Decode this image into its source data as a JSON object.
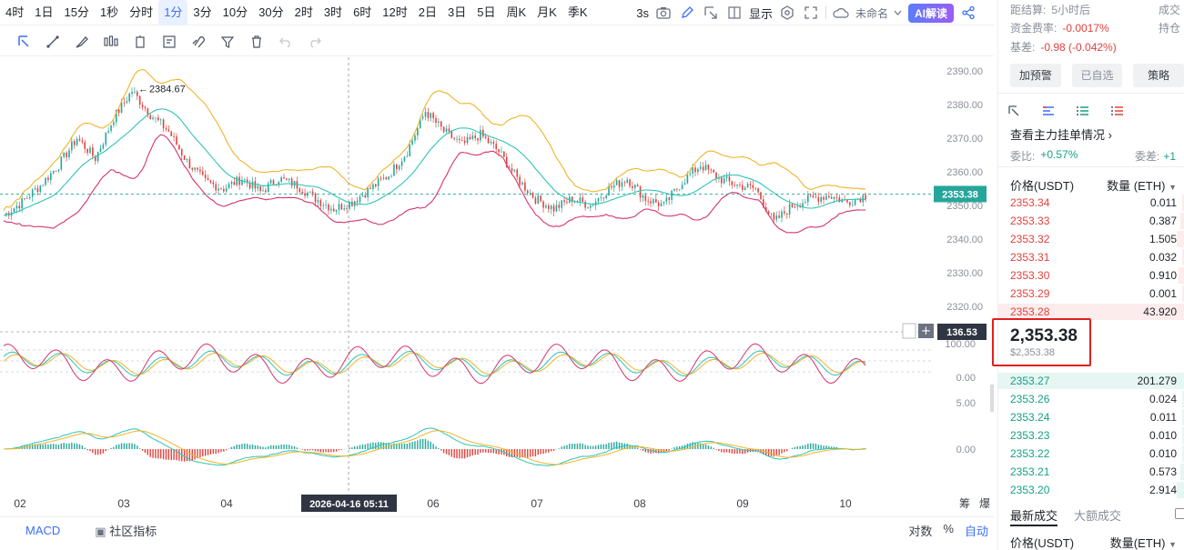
{
  "toolbar": {
    "timeframes": [
      "4时",
      "1日",
      "15分",
      "1秒",
      "分时",
      "1分",
      "3分",
      "10分",
      "30分",
      "2时",
      "3时",
      "6时",
      "12时",
      "2日",
      "3日",
      "5日",
      "周K",
      "月K",
      "季K"
    ],
    "active_index": 5,
    "interval_label": "3s",
    "display_label": "显示",
    "layout_name": "未命名",
    "ai_label": "AI解读"
  },
  "drawing_tools": [
    "cursor-icon",
    "line-icon",
    "brush-icon",
    "candles-icon",
    "ruler-icon",
    "note-icon",
    "magnet-icon",
    "filter-icon",
    "trash-icon",
    "undo-icon",
    "redo-icon"
  ],
  "chart_data": {
    "type": "candlestick",
    "symbol_quote": "USDT",
    "price_axis": {
      "ticks": [
        "2390.00",
        "2380.00",
        "2370.00",
        "2360.00",
        "2350.00",
        "2340.00",
        "2330.00",
        "2320.00"
      ],
      "range": [
        2313,
        2394
      ]
    },
    "last_price_tag": "2353.38",
    "high_annotation": "2384.67",
    "crosshair_value_tag": "136.53",
    "crosshair_time_tag": "2026-04-16 05:11",
    "x_ticks": [
      "02",
      "03",
      "04",
      "05",
      "06",
      "07",
      "08",
      "09",
      "10"
    ],
    "oscillator_ticks": [
      "100.00",
      "0.00"
    ],
    "macd_ticks": [
      "5.00",
      "0.00"
    ],
    "overlays": [
      "bollinger_upper",
      "bollinger_mid",
      "bollinger_lower"
    ],
    "colors": {
      "up": "#26a69a",
      "down": "#e2413c",
      "boll_upper": "#f0b429",
      "boll_mid": "#2ec4b6",
      "boll_lower": "#d6336c",
      "macd_fast": "#f0b429",
      "macd_slow": "#2ec4b6",
      "kdj_j": "#d6336c"
    },
    "price_path": [
      2347,
      2351,
      2356,
      2362,
      2370,
      2364,
      2376,
      2384,
      2377,
      2372,
      2363,
      2357,
      2355,
      2358,
      2354,
      2358,
      2356,
      2352,
      2349,
      2351,
      2355,
      2359,
      2366,
      2378,
      2372,
      2368,
      2371,
      2366,
      2358,
      2352,
      2349,
      2352,
      2350,
      2355,
      2358,
      2352,
      2350,
      2357,
      2362,
      2358,
      2356,
      2355,
      2345,
      2350,
      2352,
      2353,
      2351,
      2353
    ]
  },
  "bottom": {
    "macd_label": "MACD",
    "indicators_label": "社区指标",
    "right_items": [
      "对数",
      "%",
      "自动"
    ],
    "mid_labels": [
      "筹",
      "爆"
    ]
  },
  "panel": {
    "settle_label": "距结算:",
    "settle_value": "5小时后",
    "vol_label": "成交",
    "funding_label": "资金费率:",
    "funding_value": "-0.0017%",
    "hold_label": "持仓",
    "basis_label": "基差:",
    "basis_value": "-0.98 (-0.042%)",
    "buttons": [
      "加预警",
      "已自选",
      "策略"
    ],
    "depth_link": "查看主力挂单情况",
    "ratio_label": "委比:",
    "ratio_value": "+0.57%",
    "diff_label": "委差:",
    "diff_value": "+1",
    "ob_price_head": "价格(USDT)",
    "ob_qty_head": "数量 (ETH)",
    "asks": [
      {
        "p": "2353.34",
        "q": "0.011",
        "w": 0.01
      },
      {
        "p": "2353.33",
        "q": "0.387",
        "w": 0.02
      },
      {
        "p": "2353.32",
        "q": "1.505",
        "w": 0.04
      },
      {
        "p": "2353.31",
        "q": "0.032",
        "w": 0.01
      },
      {
        "p": "2353.30",
        "q": "0.910",
        "w": 0.03
      },
      {
        "p": "2353.29",
        "q": "0.001",
        "w": 0.01
      },
      {
        "p": "2353.28",
        "q": "43.920",
        "w": 1.0
      }
    ],
    "mid_price": "2,353.38",
    "mid_usd": "$2,353.38",
    "bids": [
      {
        "p": "2353.27",
        "q": "201.279",
        "w": 1.0
      },
      {
        "p": "2353.26",
        "q": "0.024",
        "w": 0.01
      },
      {
        "p": "2353.24",
        "q": "0.011",
        "w": 0.01
      },
      {
        "p": "2353.23",
        "q": "0.010",
        "w": 0.01
      },
      {
        "p": "2353.22",
        "q": "0.010",
        "w": 0.01
      },
      {
        "p": "2353.21",
        "q": "0.573",
        "w": 0.02
      },
      {
        "p": "2353.20",
        "q": "2.914",
        "w": 0.04
      }
    ],
    "trade_tabs": [
      "最新成交",
      "大额成交"
    ],
    "trade_price_head": "价格(USDT)",
    "trade_qty_head": "数量(ETH)"
  }
}
